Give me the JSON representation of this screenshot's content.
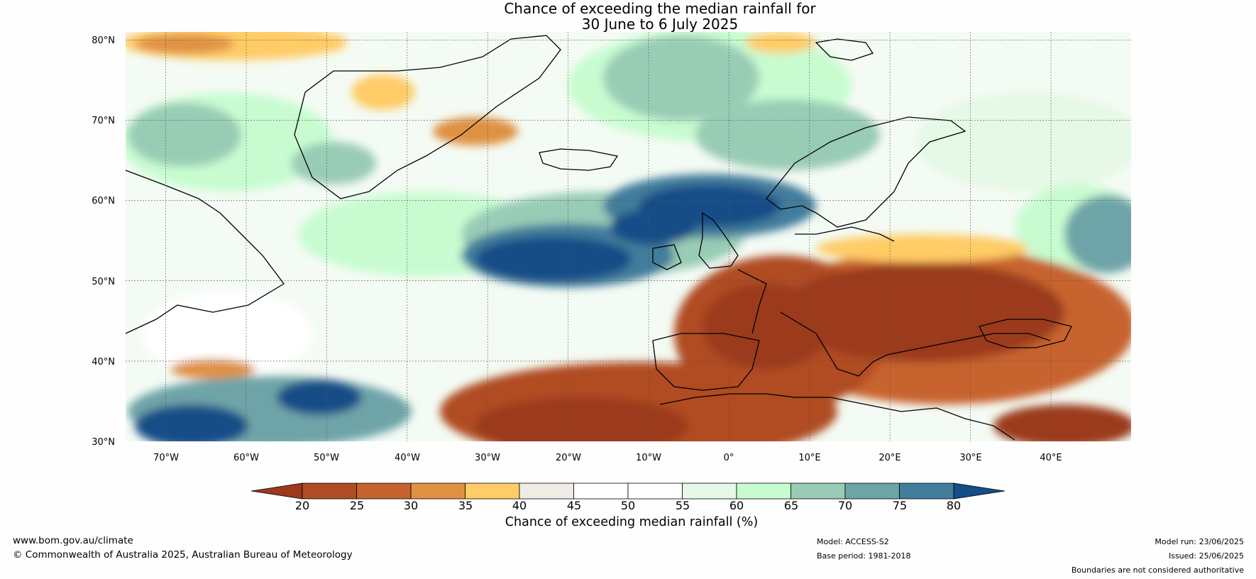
{
  "title": {
    "line1": "Chance of exceeding the median rainfall for",
    "line2": "30 June to 6 July 2025"
  },
  "map": {
    "projection": "equirectangular",
    "extent": {
      "lon_min": -75,
      "lon_max": 50,
      "lat_min": 30,
      "lat_max": 81
    },
    "lat_ticks": [
      "80°N",
      "70°N",
      "60°N",
      "50°N",
      "40°N",
      "30°N"
    ],
    "lon_ticks": [
      "70°W",
      "60°W",
      "50°W",
      "40°W",
      "30°W",
      "20°W",
      "10°W",
      "0°",
      "10°E",
      "20°E",
      "30°E",
      "40°E"
    ],
    "grid": true
  },
  "colorbar": {
    "title": "Chance of exceeding median rainfall (%)",
    "ticks": [
      "20",
      "25",
      "30",
      "35",
      "40",
      "45",
      "50",
      "55",
      "60",
      "65",
      "70",
      "75",
      "80"
    ],
    "colors": [
      "#9b3a1c",
      "#b04c24",
      "#c7632f",
      "#df9142",
      "#ffcc66",
      "#efece6",
      "#ffffff",
      "#ffffff",
      "#e6f8e6",
      "#c8fcd0",
      "#99ccb5",
      "#6ea4a8",
      "#427d9c",
      "#144d87"
    ]
  },
  "footer": {
    "url": "www.bom.gov.au/climate",
    "copyright": "© Commonwealth of Australia 2025, Australian Bureau of Meteorology",
    "model": "Model: ACCESS-S2",
    "base_period": "Base period: 1981-2018",
    "model_run": "Model run: 23/06/2025",
    "issued": "Issued: 25/06/2025",
    "boundaries_note": "Boundaries are not considered authoritative"
  }
}
